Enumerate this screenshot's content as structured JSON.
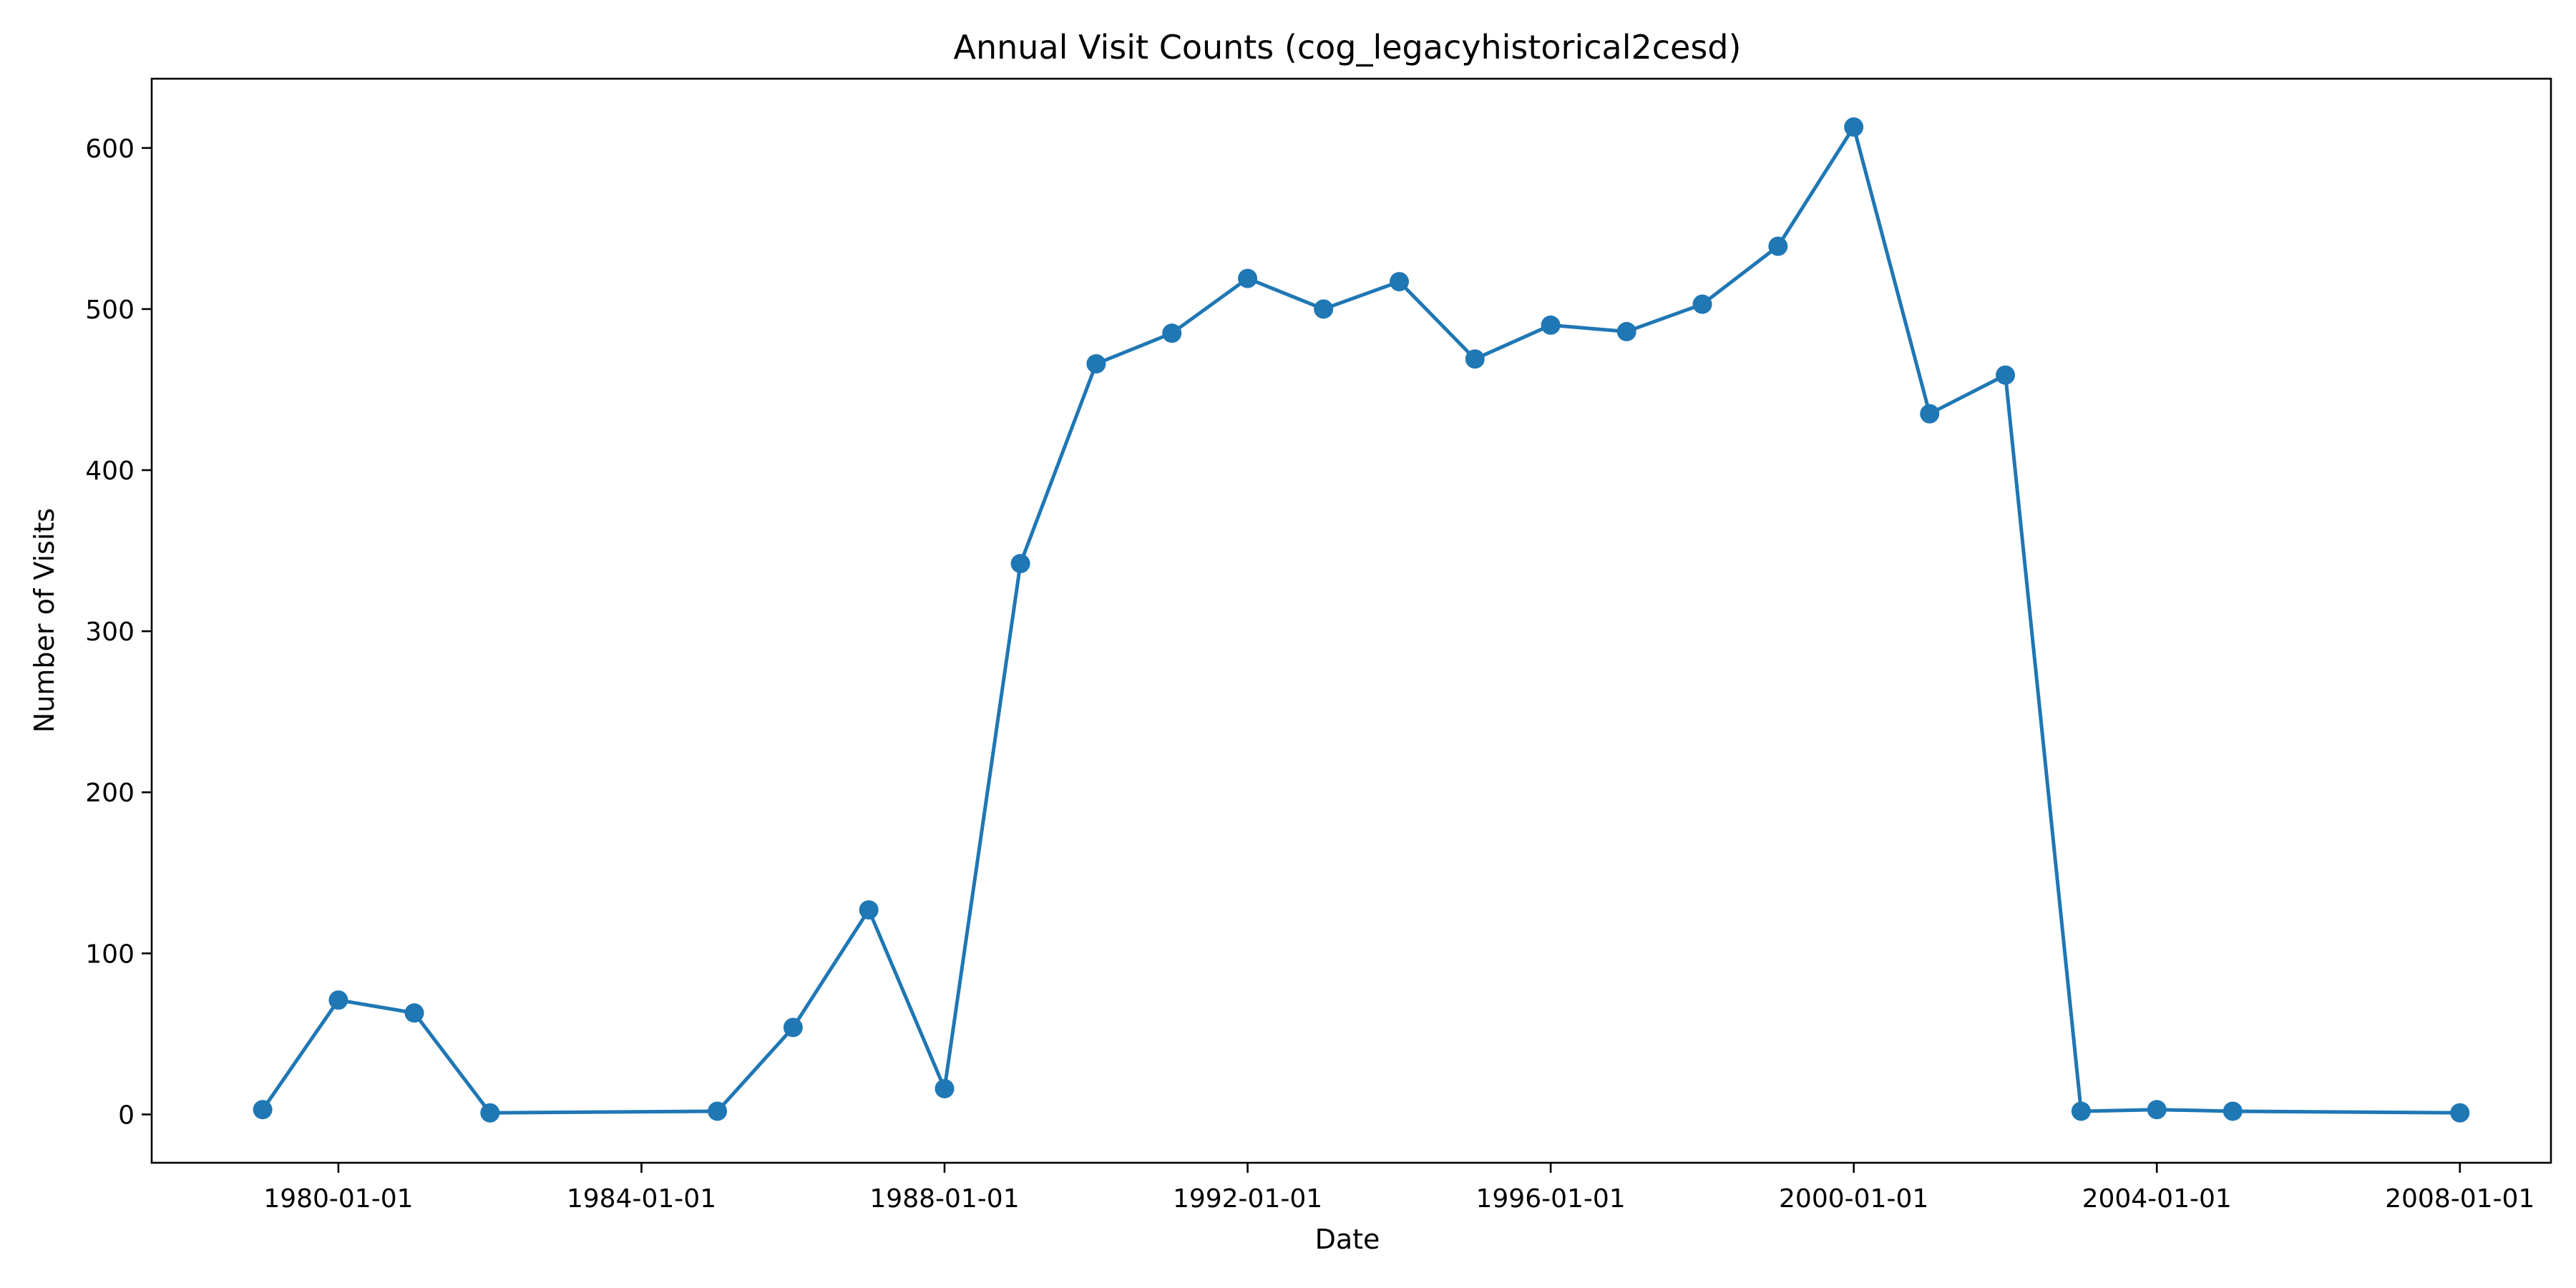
{
  "chart_data": {
    "type": "line",
    "title": "Annual Visit Counts (cog_legacyhistorical2cesd)",
    "xlabel": "Date",
    "ylabel": "Number of Visits",
    "x_tick_labels": [
      "1980-01-01",
      "1984-01-01",
      "1988-01-01",
      "1992-01-01",
      "1996-01-01",
      "2000-01-01",
      "2004-01-01",
      "2008-01-01"
    ],
    "y_ticks": [
      0,
      100,
      200,
      300,
      400,
      500,
      600
    ],
    "ylim": [
      -30,
      643
    ],
    "xlim": [
      "1977-07-15",
      "2009-03-15"
    ],
    "grid": false,
    "colors": {
      "series": "#1f77b4"
    },
    "series": [
      {
        "name": "",
        "x": [
          "1979-01-01",
          "1980-01-01",
          "1981-01-01",
          "1982-01-01",
          "1985-01-01",
          "1986-01-01",
          "1987-01-01",
          "1988-01-01",
          "1989-01-01",
          "1990-01-01",
          "1991-01-01",
          "1992-01-01",
          "1993-01-01",
          "1994-01-01",
          "1995-01-01",
          "1996-01-01",
          "1997-01-01",
          "1998-01-01",
          "1999-01-01",
          "2000-01-01",
          "2001-01-01",
          "2002-01-01",
          "2003-01-01",
          "2004-01-01",
          "2005-01-01",
          "2008-01-01"
        ],
        "values": [
          3,
          71,
          63,
          1,
          2,
          54,
          127,
          16,
          342,
          466,
          485,
          519,
          500,
          517,
          469,
          490,
          486,
          503,
          539,
          613,
          435,
          459,
          2,
          3,
          2,
          1
        ]
      }
    ]
  }
}
